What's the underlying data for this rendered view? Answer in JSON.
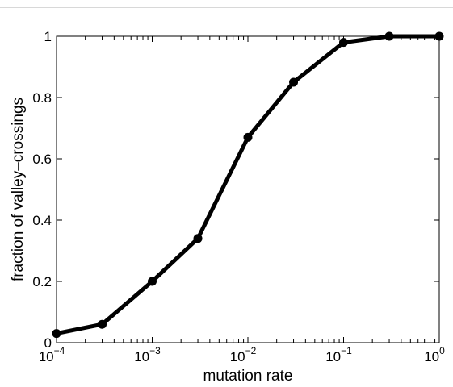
{
  "chart_data": {
    "type": "line",
    "xlabel": "mutation rate",
    "ylabel": "fraction of valley–crossings",
    "xscale": "log",
    "xlim": [
      0.0001,
      1
    ],
    "ylim": [
      0,
      1
    ],
    "grid": false,
    "x_ticks": [
      {
        "base": "10",
        "exp": "−4",
        "value": 0.0001
      },
      {
        "base": "10",
        "exp": "−3",
        "value": 0.001
      },
      {
        "base": "10",
        "exp": "−2",
        "value": 0.01
      },
      {
        "base": "10",
        "exp": "−1",
        "value": 0.1
      },
      {
        "base": "10",
        "exp": "0",
        "value": 1
      }
    ],
    "y_ticks": [
      {
        "label": "0",
        "value": 0
      },
      {
        "label": "0.2",
        "value": 0.2
      },
      {
        "label": "0.4",
        "value": 0.4
      },
      {
        "label": "0.6",
        "value": 0.6
      },
      {
        "label": "0.8",
        "value": 0.8
      },
      {
        "label": "1",
        "value": 1
      }
    ],
    "series": [
      {
        "color": "#000000",
        "marker": "circle",
        "x": [
          0.0001,
          0.0003,
          0.001,
          0.003,
          0.01,
          0.03,
          0.1,
          0.3,
          1
        ],
        "y": [
          0.03,
          0.06,
          0.2,
          0.34,
          0.67,
          0.85,
          0.98,
          1.0,
          1.0
        ]
      }
    ]
  }
}
